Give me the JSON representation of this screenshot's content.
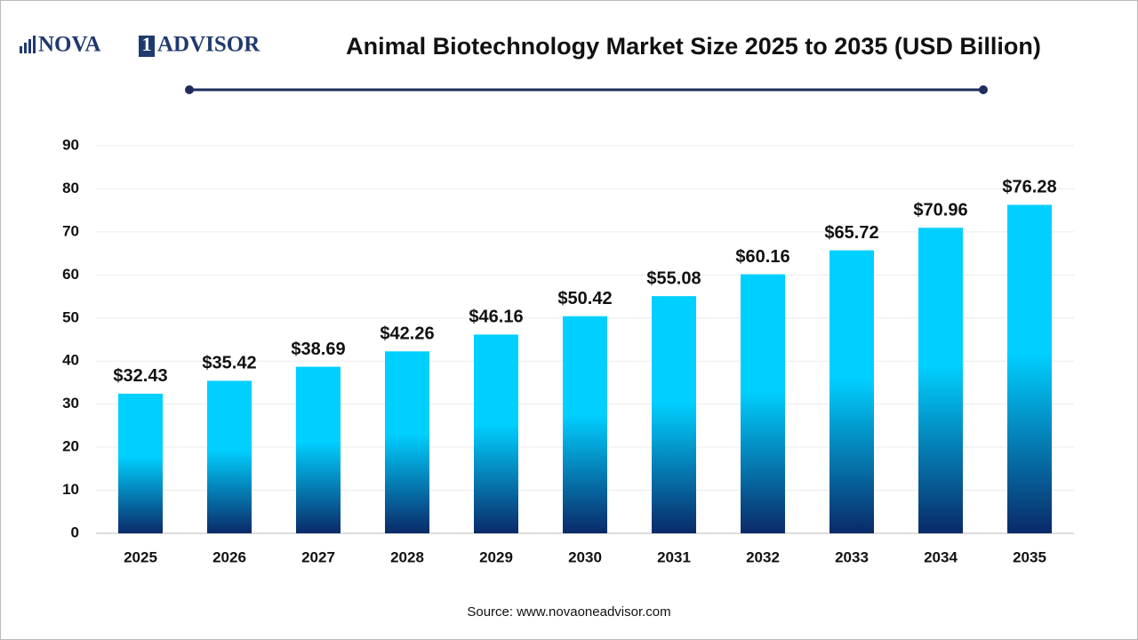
{
  "chart_data": {
    "type": "bar",
    "title": "Animal Biotechnology Market Size 2025 to 2035 (USD Billion)",
    "logo": [
      "NOVA",
      "1",
      "ADVISOR"
    ],
    "source": "Source: www.novaoneadvisor.com",
    "categories": [
      "2025",
      "2026",
      "2027",
      "2028",
      "2029",
      "2030",
      "2031",
      "2032",
      "2033",
      "2034",
      "2035"
    ],
    "values": [
      32.43,
      35.42,
      38.69,
      42.26,
      46.16,
      50.42,
      55.08,
      60.16,
      65.72,
      70.96,
      76.28
    ],
    "value_labels": [
      "$32.43",
      "$35.42",
      "$38.69",
      "$42.26",
      "$46.16",
      "$50.42",
      "$55.08",
      "$60.16",
      "$65.72",
      "$70.96",
      "$76.28"
    ],
    "colors": [
      "#00d0ff",
      "#0a2a68"
    ],
    "ylim": [
      0,
      90
    ],
    "yticks": [
      0,
      10,
      20,
      30,
      40,
      50,
      60,
      70,
      80,
      90
    ],
    "grid": true
  }
}
